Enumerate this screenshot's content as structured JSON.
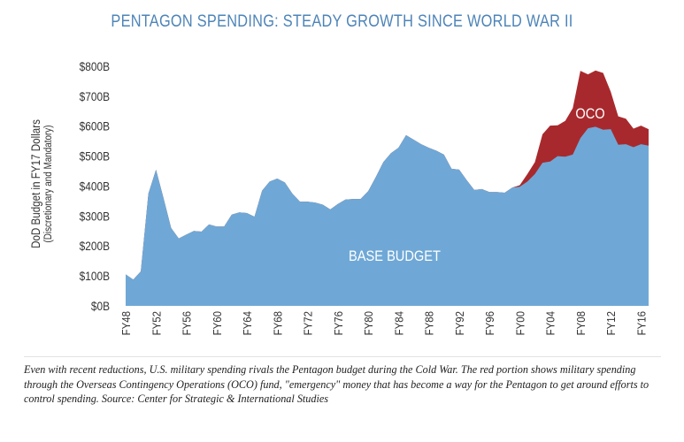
{
  "colors": {
    "base": "#6fa8d6",
    "oco": "#a8292d",
    "title": "#4d84b8",
    "axis": "#333333"
  },
  "chart_data": {
    "type": "area",
    "title": "PENTAGON SPENDING: STEADY GROWTH SINCE WORLD WAR II",
    "ylabel": "DoD Budget in FY17 Dollars",
    "ylabel_sub": "(Discretionary and Mandatory)",
    "xlabel": "",
    "ylim": [
      0,
      800
    ],
    "y_ticks": [
      "$0B",
      "$100B",
      "$200B",
      "$300B",
      "$400B",
      "$500B",
      "$600B",
      "$700B",
      "$800B"
    ],
    "x_ticks": [
      "FY48",
      "FY52",
      "FY56",
      "FY60",
      "FY64",
      "FY68",
      "FY72",
      "FY76",
      "FY80",
      "FY84",
      "FY88",
      "FY92",
      "FY96",
      "FY00",
      "FY04",
      "FY08",
      "FY12",
      "FY16"
    ],
    "annotations": {
      "base": "BASE BUDGET",
      "oco": "OCO"
    },
    "x": [
      1948,
      1949,
      1950,
      1951,
      1952,
      1953,
      1954,
      1955,
      1956,
      1957,
      1958,
      1959,
      1960,
      1961,
      1962,
      1963,
      1964,
      1965,
      1966,
      1967,
      1968,
      1969,
      1970,
      1971,
      1972,
      1973,
      1974,
      1975,
      1976,
      1977,
      1978,
      1979,
      1980,
      1981,
      1982,
      1983,
      1984,
      1985,
      1986,
      1987,
      1988,
      1989,
      1990,
      1991,
      1992,
      1993,
      1994,
      1995,
      1996,
      1997,
      1998,
      1999,
      2000,
      2001,
      2002,
      2003,
      2004,
      2005,
      2006,
      2007,
      2008,
      2009,
      2010,
      2011,
      2012,
      2013,
      2014,
      2015,
      2016,
      2017
    ],
    "series": [
      {
        "name": "BASE BUDGET",
        "values": [
          105,
          88,
          115,
          375,
          455,
          360,
          260,
          225,
          238,
          250,
          248,
          272,
          265,
          265,
          305,
          312,
          310,
          298,
          385,
          415,
          425,
          412,
          375,
          348,
          348,
          345,
          338,
          322,
          340,
          355,
          357,
          357,
          383,
          430,
          480,
          510,
          528,
          570,
          555,
          540,
          528,
          518,
          505,
          458,
          455,
          420,
          387,
          390,
          380,
          380,
          378,
          395,
          398,
          415,
          440,
          478,
          482,
          500,
          498,
          505,
          560,
          593,
          598,
          588,
          590,
          538,
          540,
          530,
          540,
          535
        ]
      },
      {
        "name": "OCO",
        "values": [
          0,
          0,
          0,
          0,
          0,
          0,
          0,
          0,
          0,
          0,
          0,
          0,
          0,
          0,
          0,
          0,
          0,
          0,
          0,
          0,
          0,
          0,
          0,
          0,
          0,
          0,
          0,
          0,
          0,
          0,
          0,
          0,
          0,
          0,
          0,
          0,
          0,
          0,
          0,
          0,
          0,
          0,
          0,
          0,
          0,
          0,
          0,
          0,
          0,
          0,
          0,
          0,
          5,
          25,
          40,
          95,
          120,
          103,
          120,
          155,
          225,
          180,
          188,
          190,
          125,
          95,
          85,
          62,
          62,
          55
        ]
      }
    ]
  },
  "caption": "Even with recent reductions, U.S. military spending rivals the Pentagon budget during the Cold War. The red portion shows military spending through the Overseas Contingency Operations (OCO) fund, \"emergency\" money that has become a way for the Pentagon to get around efforts to control spending. Source: Center for Strategic & International Studies"
}
